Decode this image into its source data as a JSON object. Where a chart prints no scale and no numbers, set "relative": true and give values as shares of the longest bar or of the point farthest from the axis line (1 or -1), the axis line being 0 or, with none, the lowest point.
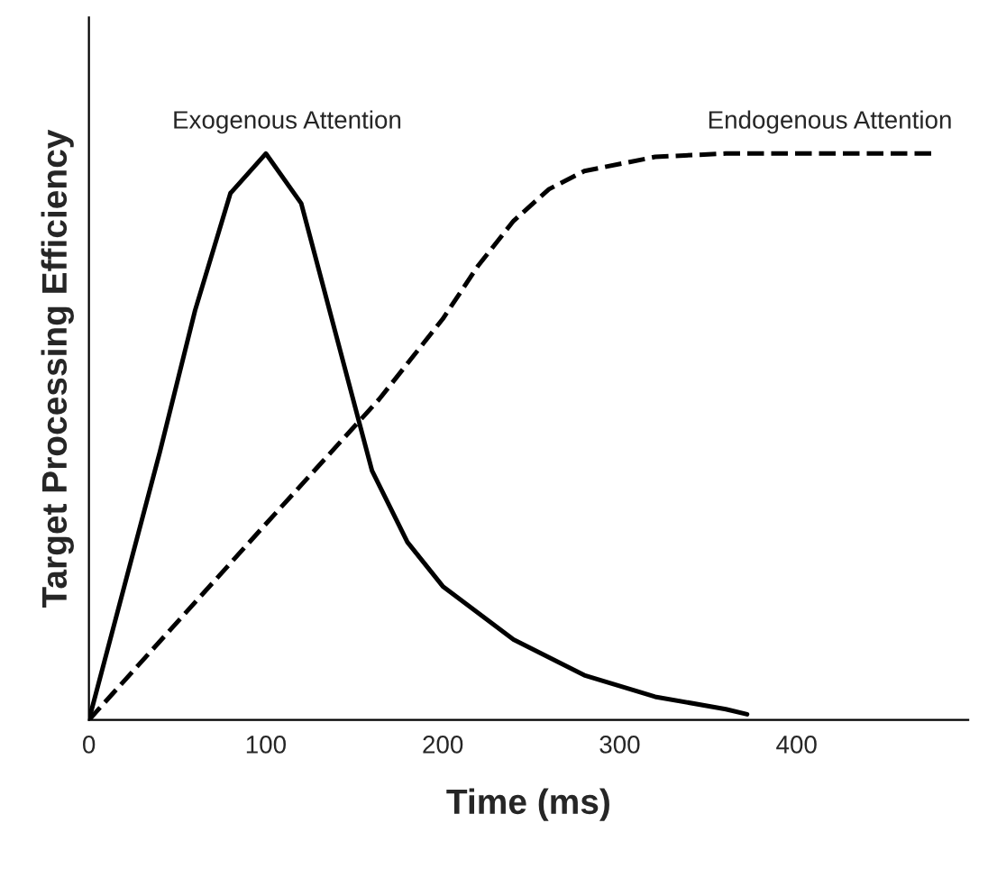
{
  "chart_data": {
    "type": "line",
    "relative": true,
    "xlabel": "Time (ms)",
    "ylabel": "Target Processing Efficiency",
    "xlim": [
      0,
      497
    ],
    "xticks": [
      0,
      100,
      200,
      300,
      400
    ],
    "tick_labels": "x",
    "grid": false,
    "legend": false,
    "marker": "none",
    "series": [
      {
        "name": "Exogenous Attention",
        "color": "#000000",
        "line_style": "solid",
        "x": [
          0,
          20,
          40,
          60,
          80,
          100,
          120,
          140,
          160,
          180,
          200,
          240,
          280,
          320,
          360,
          372
        ],
        "values": [
          0,
          0.236,
          0.472,
          0.723,
          0.93,
          1,
          0.912,
          0.676,
          0.44,
          0.314,
          0.236,
          0.142,
          0.079,
          0.041,
          0.019,
          0.01
        ]
      },
      {
        "name": "Endogenous Attention",
        "color": "#000000",
        "line_style": "dashed",
        "x": [
          0,
          100,
          164,
          200,
          220,
          240,
          260,
          280,
          320,
          360,
          480
        ],
        "values": [
          0,
          0.346,
          0.566,
          0.708,
          0.802,
          0.881,
          0.937,
          0.969,
          0.994,
          1,
          1
        ]
      }
    ]
  }
}
